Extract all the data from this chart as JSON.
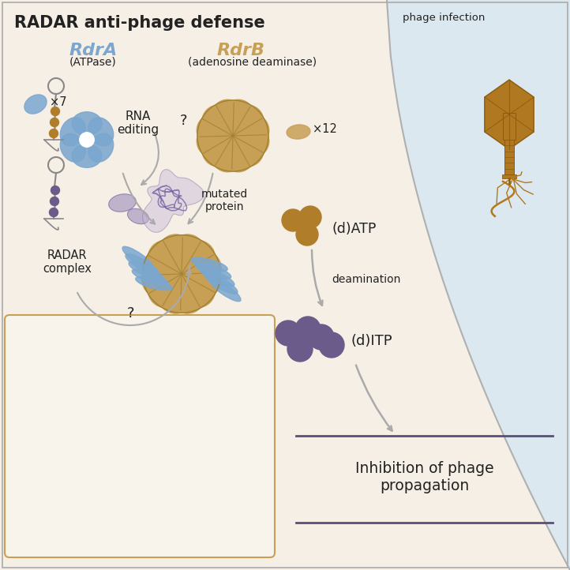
{
  "title": "RADAR anti-phage defense",
  "bg_main": "#f5efe6",
  "bg_phage": "#dce8f0",
  "rdra_color": "#7ba7cf",
  "rdrb_color": "#c8a055",
  "rdra_label": "RdrA",
  "rdrb_label": "RdrB",
  "rdra_sub": "(ATPase)",
  "rdrb_sub": "(adenosine deaminase)",
  "phage_infection_label": "phage infection",
  "radar_complex_label": "RADAR\ncomplex",
  "datp_label": "(d)ATP",
  "ditp_label": "(d)ITP",
  "deamination_label": "deamination",
  "inhibition_label": "Inhibition of phage\npropagation",
  "rna_editing_label": "RNA\nediting",
  "mutated_protein_label": "mutated\nprotein",
  "x7_label": "×7",
  "x12_label": "×12",
  "datp_color": "#b07d2a",
  "ditp_color": "#6b5b8a",
  "arrow_color": "#aaaaaa",
  "inhibition_line_color": "#5a4e7a",
  "text_color": "#222222",
  "box_border": "#c8a055",
  "inset_bg": "#f8f3eb",
  "phage_color": "#b07820",
  "line_color": "#c8b080"
}
